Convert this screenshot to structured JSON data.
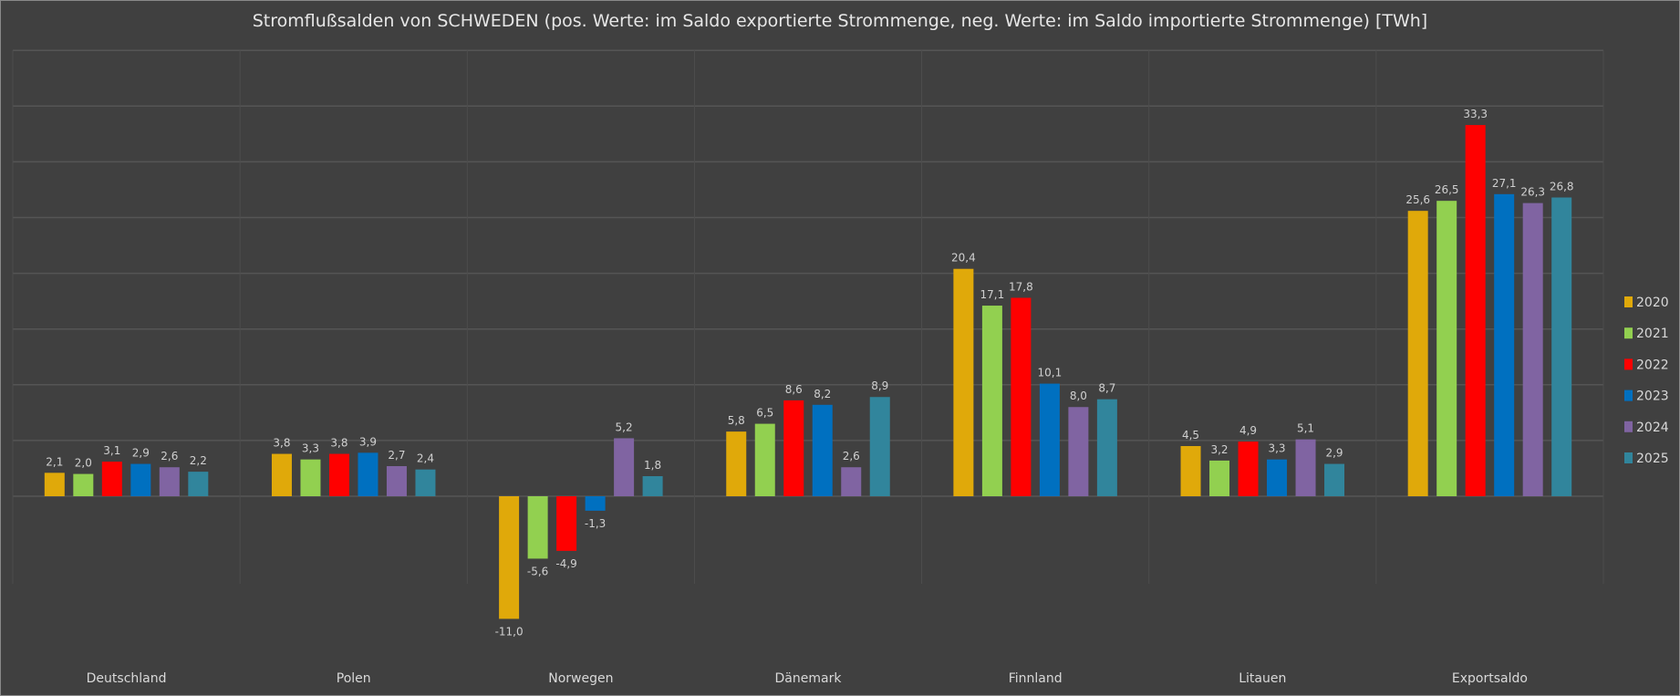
{
  "chart_data": {
    "type": "bar",
    "title": "Stromflußsalden von SCHWEDEN (pos. Werte: im Saldo exportierte Strommenge, neg. Werte: im Saldo importierte Strommenge) [TWh]",
    "xlabel": "",
    "ylabel": "",
    "ylim": [
      -11,
      40
    ],
    "grid": true,
    "legend_position": "right",
    "categories": [
      "Deutschland",
      "Polen",
      "Norwegen",
      "Dänemark",
      "Finnland",
      "Litauen",
      "Exportsaldo"
    ],
    "series": [
      {
        "name": "2020",
        "color": "#E0A90A",
        "values": [
          2.1,
          3.8,
          -11.0,
          5.8,
          20.4,
          4.5,
          25.6
        ],
        "labels": [
          "2,1",
          "3,8",
          "-11,0",
          "5,8",
          "20,4",
          "4,5",
          "25,6"
        ]
      },
      {
        "name": "2021",
        "color": "#92D050",
        "values": [
          2.0,
          3.3,
          -5.6,
          6.5,
          17.1,
          3.2,
          26.5
        ],
        "labels": [
          "2,0",
          "3,3",
          "-5,6",
          "6,5",
          "17,1",
          "3,2",
          "26,5"
        ]
      },
      {
        "name": "2022",
        "color": "#FF0000",
        "values": [
          3.1,
          3.8,
          -4.9,
          8.6,
          17.8,
          4.9,
          33.3
        ],
        "labels": [
          "3,1",
          "3,8",
          "-4,9",
          "8,6",
          "17,8",
          "4,9",
          "33,3"
        ]
      },
      {
        "name": "2023",
        "color": "#0070C0",
        "values": [
          2.9,
          3.9,
          -1.3,
          8.2,
          10.1,
          3.3,
          27.1
        ],
        "labels": [
          "2,9",
          "3,9",
          "-1,3",
          "8,2",
          "10,1",
          "3,3",
          "27,1"
        ]
      },
      {
        "name": "2024",
        "color": "#8064A2",
        "values": [
          2.6,
          2.7,
          5.2,
          2.6,
          8.0,
          5.1,
          26.3
        ],
        "labels": [
          "2,6",
          "2,7",
          "5,2",
          "2,6",
          "8,0",
          "5,1",
          "26,3"
        ]
      },
      {
        "name": "2025",
        "color": "#31859C",
        "values": [
          2.2,
          2.4,
          1.8,
          8.9,
          8.7,
          2.9,
          26.8
        ],
        "labels": [
          "2,2",
          "2,4",
          "1,8",
          "8,9",
          "8,7",
          "2,9",
          "26,8"
        ]
      }
    ]
  }
}
